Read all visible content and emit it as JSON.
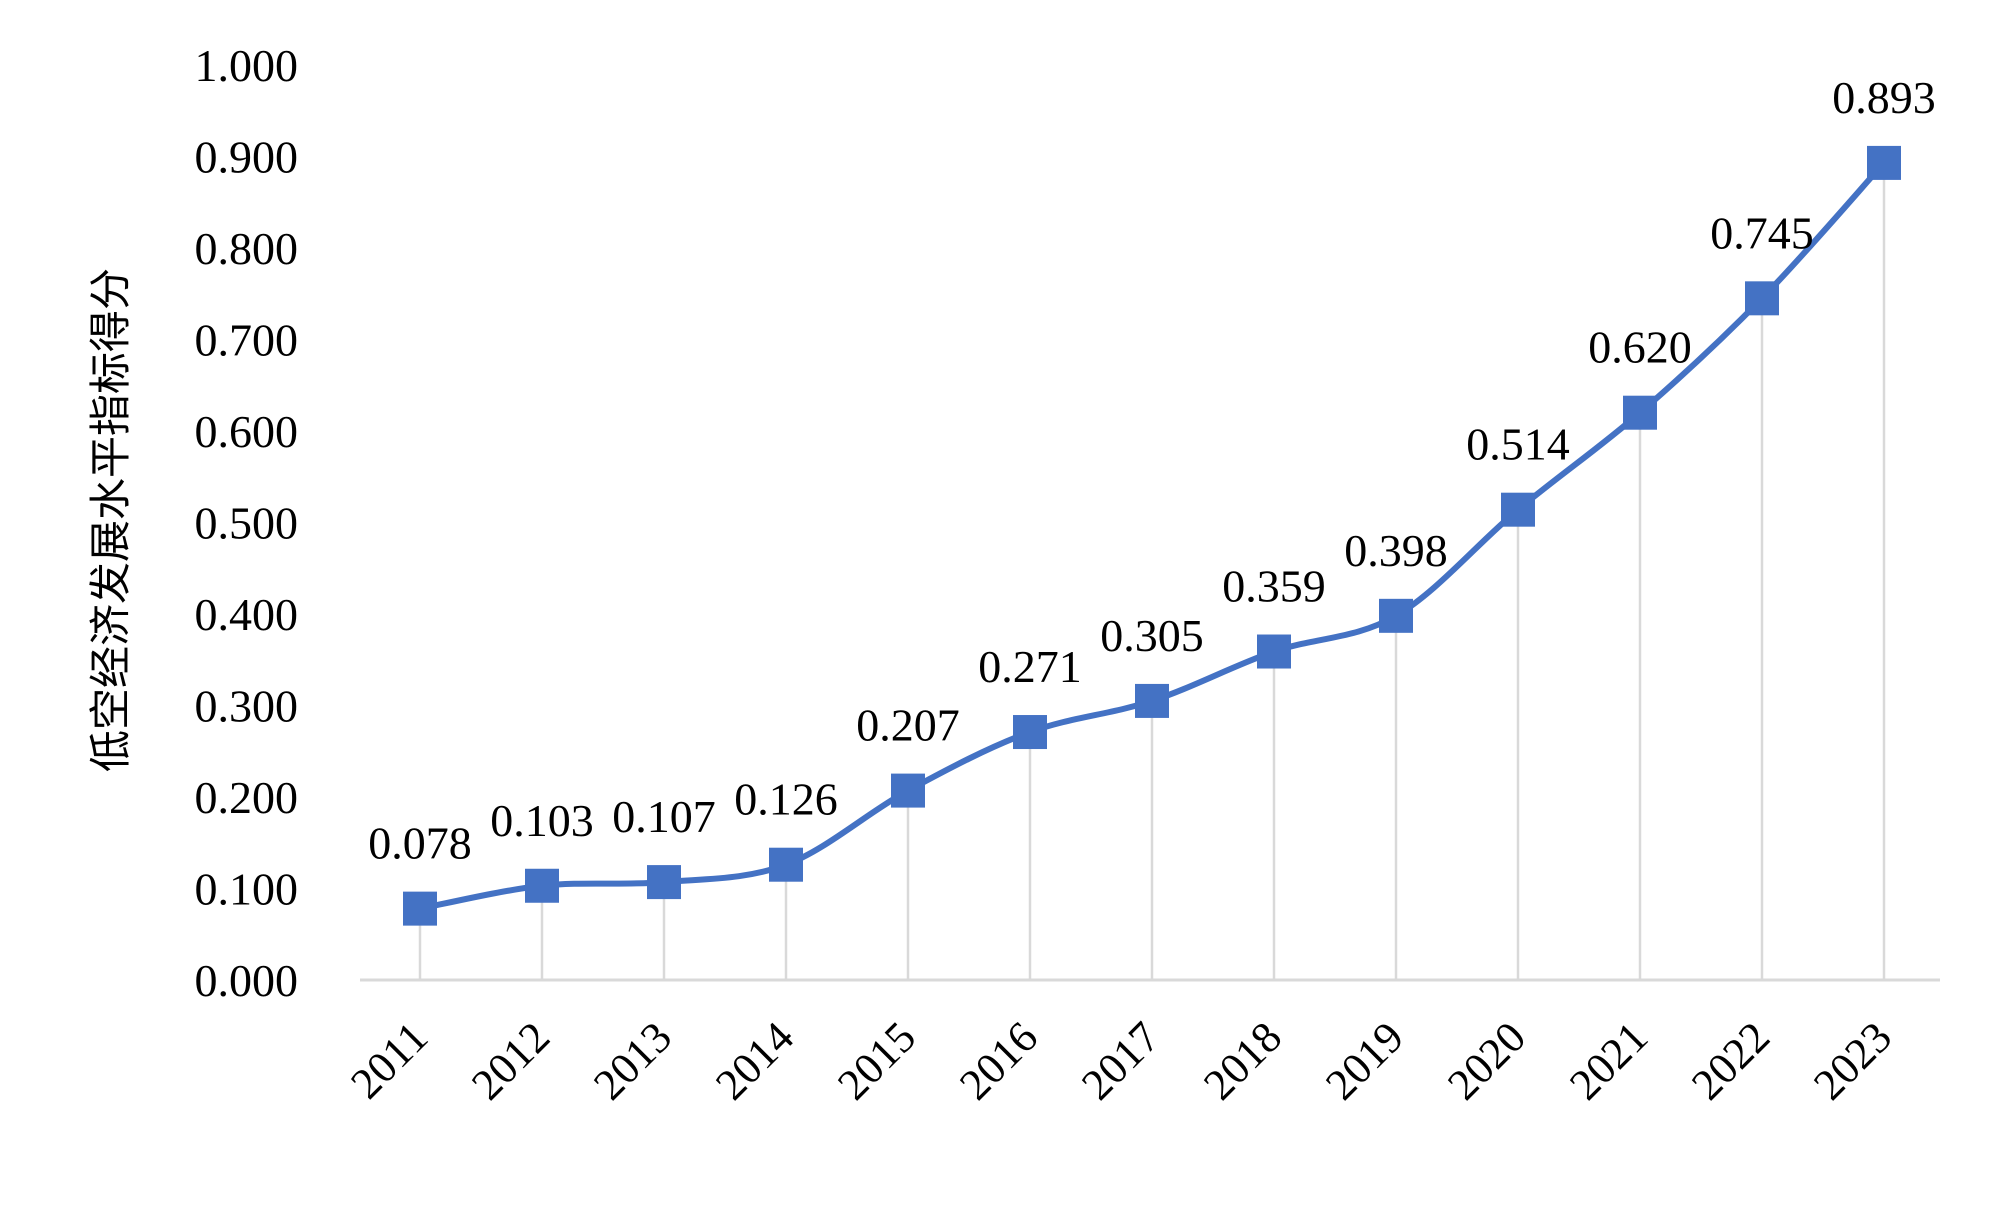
{
  "chart_data": {
    "type": "line",
    "title": "",
    "xlabel": "",
    "ylabel": "低空经济发展水平指标得分",
    "categories": [
      "2011",
      "2012",
      "2013",
      "2014",
      "2015",
      "2016",
      "2017",
      "2018",
      "2019",
      "2020",
      "2021",
      "2022",
      "2023"
    ],
    "series": [
      {
        "name": "低空经济发展水平指标得分",
        "values": [
          0.078,
          0.103,
          0.107,
          0.126,
          0.207,
          0.271,
          0.305,
          0.359,
          0.398,
          0.514,
          0.62,
          0.745,
          0.893
        ],
        "labels": [
          "0.078",
          "0.103",
          "0.107",
          "0.126",
          "0.207",
          "0.271",
          "0.305",
          "0.359",
          "0.398",
          "0.514",
          "0.620",
          "0.745",
          "0.893"
        ]
      }
    ],
    "ylim": [
      0,
      1.0
    ],
    "yticks": [
      "0.000",
      "0.100",
      "0.200",
      "0.300",
      "0.400",
      "0.500",
      "0.600",
      "0.700",
      "0.800",
      "0.900",
      "1.000"
    ],
    "grid": false,
    "drop_lines": true,
    "marker": "square",
    "smooth": true,
    "colors": {
      "series": "#4472C4",
      "axis": "#D9D9D9",
      "drop_line": "#D9D9D9"
    }
  }
}
